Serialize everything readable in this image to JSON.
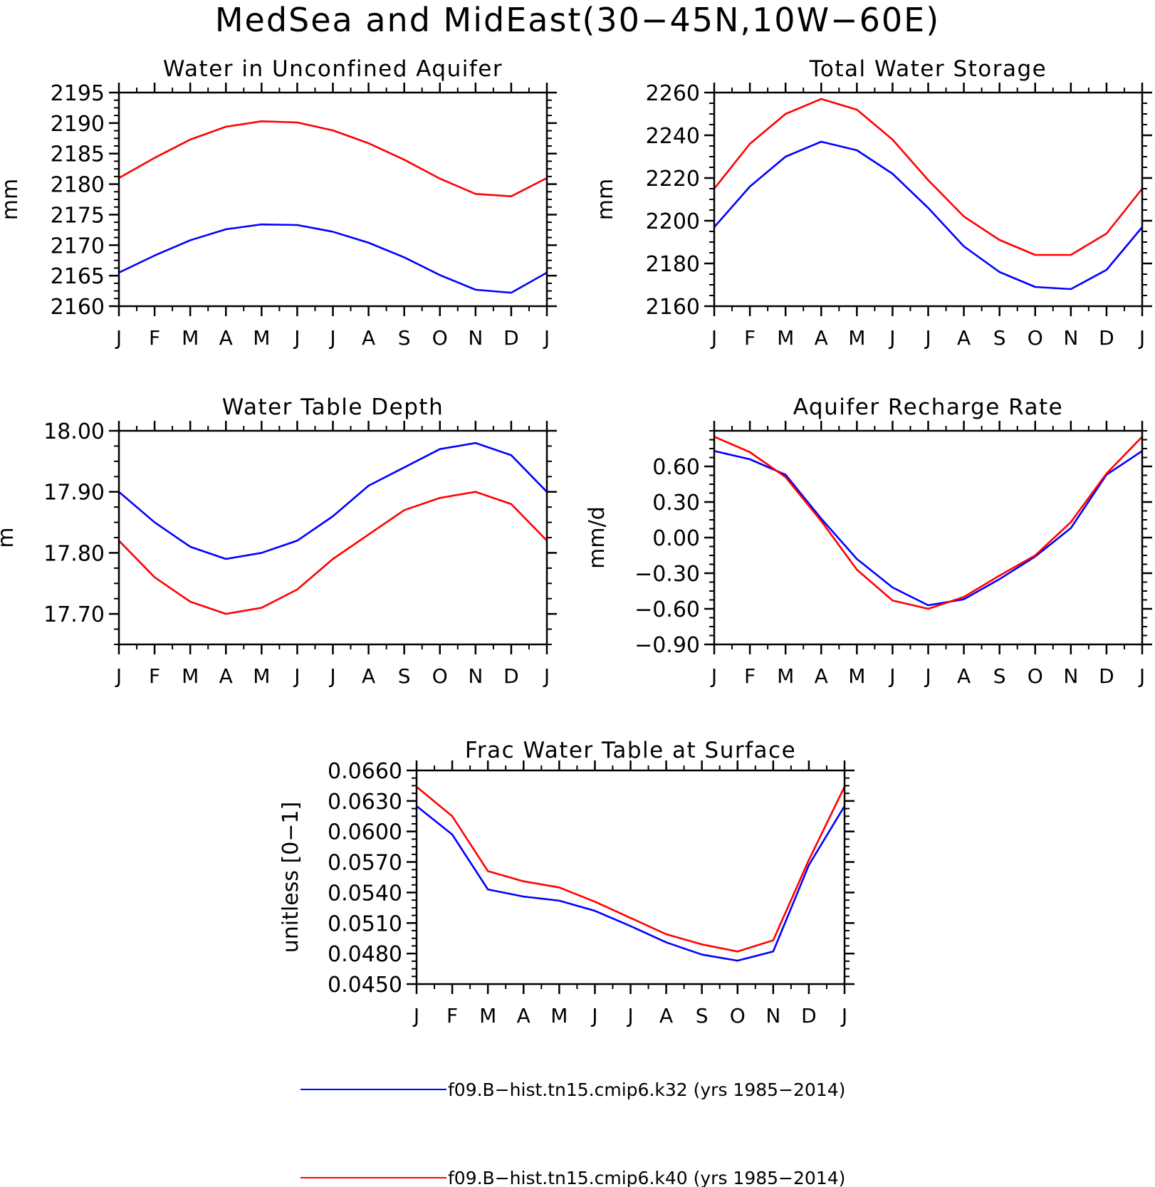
{
  "title": "MedSea and MidEast(30−45N,10W−60E)",
  "colors": {
    "k32": "#0000ff",
    "k40": "#ff0000",
    "axes": "#000000"
  },
  "legend": {
    "placement": "bottom-center",
    "entries": [
      {
        "label": "f09.B−hist.tn15.cmip6.k32 (yrs 1985−2014)",
        "color": "#0000ff"
      },
      {
        "label": "f09.B−hist.tn15.cmip6.k40 (yrs 1985−2014)",
        "color": "#ff0000"
      }
    ]
  },
  "chart_data": [
    {
      "id": "unconfined",
      "type": "line",
      "title": "Water in Unconfined Aquifer",
      "ylabel": "mm",
      "xlabel": "",
      "x_tick_labels": [
        "J",
        "F",
        "M",
        "A",
        "M",
        "J",
        "J",
        "A",
        "S",
        "O",
        "N",
        "D",
        "J"
      ],
      "ylim": [
        2160,
        2195
      ],
      "y_ticks": [
        2160,
        2165,
        2170,
        2175,
        2180,
        2185,
        2190,
        2195
      ],
      "y_tick_labels": [
        "2160",
        "2165",
        "2170",
        "2175",
        "2180",
        "2185",
        "2190",
        "2195"
      ],
      "series": [
        {
          "key": "k32",
          "values": [
            2165.5,
            2168.3,
            2170.8,
            2172.6,
            2173.4,
            2173.3,
            2172.2,
            2170.4,
            2168.0,
            2165.1,
            2162.7,
            2162.2,
            2165.5
          ]
        },
        {
          "key": "k40",
          "values": [
            2181.0,
            2184.3,
            2187.3,
            2189.4,
            2190.3,
            2190.1,
            2188.8,
            2186.7,
            2184.0,
            2180.9,
            2178.4,
            2178.0,
            2181.0
          ]
        }
      ]
    },
    {
      "id": "tws",
      "type": "line",
      "title": "Total Water Storage",
      "ylabel": "mm",
      "xlabel": "",
      "x_tick_labels": [
        "J",
        "F",
        "M",
        "A",
        "M",
        "J",
        "J",
        "A",
        "S",
        "O",
        "N",
        "D",
        "J"
      ],
      "ylim": [
        2160,
        2260
      ],
      "y_ticks": [
        2160,
        2180,
        2200,
        2220,
        2240,
        2260
      ],
      "y_tick_labels": [
        "2160",
        "2180",
        "2200",
        "2220",
        "2240",
        "2260"
      ],
      "series": [
        {
          "key": "k32",
          "values": [
            2197,
            2216,
            2230,
            2237,
            2233,
            2222,
            2206,
            2188,
            2176,
            2169,
            2168,
            2177,
            2197
          ]
        },
        {
          "key": "k40",
          "values": [
            2215,
            2236,
            2250,
            2257,
            2252,
            2238,
            2219,
            2202,
            2191,
            2184,
            2184,
            2194,
            2215
          ]
        }
      ]
    },
    {
      "id": "wtd",
      "type": "line",
      "title": "Water Table Depth",
      "ylabel": "m",
      "xlabel": "",
      "x_tick_labels": [
        "J",
        "F",
        "M",
        "A",
        "M",
        "J",
        "J",
        "A",
        "S",
        "O",
        "N",
        "D",
        "J"
      ],
      "ylim": [
        17.65,
        18.0
      ],
      "y_ticks": [
        17.7,
        17.8,
        17.9,
        18.0
      ],
      "y_tick_labels": [
        "17.70",
        "17.80",
        "17.90",
        "18.00"
      ],
      "series": [
        {
          "key": "k32",
          "values": [
            17.9,
            17.85,
            17.81,
            17.79,
            17.8,
            17.82,
            17.86,
            17.91,
            17.94,
            17.97,
            17.98,
            17.96,
            17.9
          ]
        },
        {
          "key": "k40",
          "values": [
            17.82,
            17.76,
            17.72,
            17.7,
            17.71,
            17.74,
            17.79,
            17.83,
            17.87,
            17.89,
            17.9,
            17.88,
            17.82
          ]
        }
      ]
    },
    {
      "id": "recharge",
      "type": "line",
      "title": "Aquifer Recharge Rate",
      "ylabel": "mm/d",
      "xlabel": "",
      "x_tick_labels": [
        "J",
        "F",
        "M",
        "A",
        "M",
        "J",
        "J",
        "A",
        "S",
        "O",
        "N",
        "D",
        "J"
      ],
      "ylim": [
        -0.9,
        0.9
      ],
      "y_ticks": [
        -0.9,
        -0.6,
        -0.3,
        0.0,
        0.3,
        0.6
      ],
      "y_tick_labels": [
        "−0.90",
        "−0.60",
        "−0.30",
        "0.00",
        "0.30",
        "0.60"
      ],
      "series": [
        {
          "key": "k32",
          "values": [
            0.73,
            0.66,
            0.53,
            0.16,
            -0.18,
            -0.42,
            -0.57,
            -0.52,
            -0.35,
            -0.16,
            0.08,
            0.53,
            0.73
          ]
        },
        {
          "key": "k40",
          "values": [
            0.85,
            0.72,
            0.51,
            0.14,
            -0.27,
            -0.53,
            -0.6,
            -0.5,
            -0.32,
            -0.15,
            0.13,
            0.54,
            0.85
          ]
        }
      ]
    },
    {
      "id": "frac",
      "type": "line",
      "title": "Frac Water Table at Surface",
      "ylabel": "unitless [0−1]",
      "xlabel": "",
      "x_tick_labels": [
        "J",
        "F",
        "M",
        "A",
        "M",
        "J",
        "J",
        "A",
        "S",
        "O",
        "N",
        "D",
        "J"
      ],
      "ylim": [
        0.045,
        0.066
      ],
      "y_ticks": [
        0.045,
        0.048,
        0.051,
        0.054,
        0.057,
        0.06,
        0.063,
        0.066
      ],
      "y_tick_labels": [
        "0.0450",
        "0.0480",
        "0.0510",
        "0.0540",
        "0.0570",
        "0.0600",
        "0.0630",
        "0.0660"
      ],
      "series": [
        {
          "key": "k32",
          "values": [
            0.0625,
            0.0597,
            0.0543,
            0.0536,
            0.0532,
            0.0522,
            0.0507,
            0.0491,
            0.0479,
            0.0473,
            0.0482,
            0.0567,
            0.0625
          ]
        },
        {
          "key": "k40",
          "values": [
            0.0644,
            0.0615,
            0.0561,
            0.0551,
            0.0545,
            0.0531,
            0.0515,
            0.0499,
            0.0489,
            0.0482,
            0.0493,
            0.0572,
            0.0644
          ]
        }
      ]
    }
  ]
}
